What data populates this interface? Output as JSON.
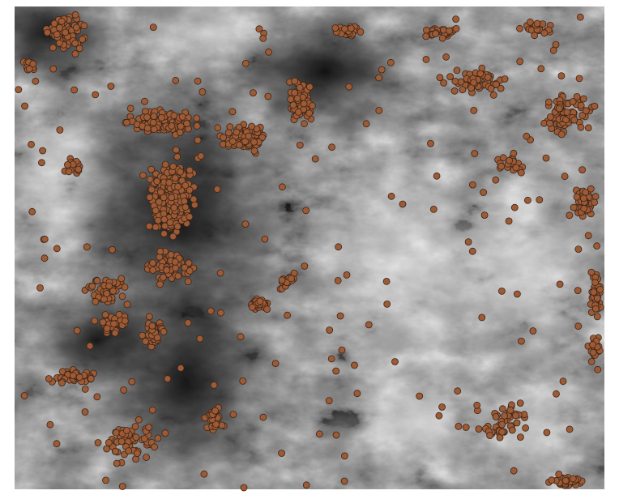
{
  "map": {
    "layers": [
      {
        "name": "elevation-raster",
        "type": "hillshade-dem",
        "ramp": [
          "#000000",
          "#ffffff"
        ]
      },
      {
        "name": "point-features",
        "type": "points",
        "fill": "#9c5a35",
        "stroke": "#3b2418"
      }
    ],
    "colors": {
      "background": "#ffffff",
      "raster_low": "#050505",
      "raster_high": "#f4f4f4",
      "point_fill": "#9c5a35",
      "point_stroke": "#3b2418"
    }
  }
}
